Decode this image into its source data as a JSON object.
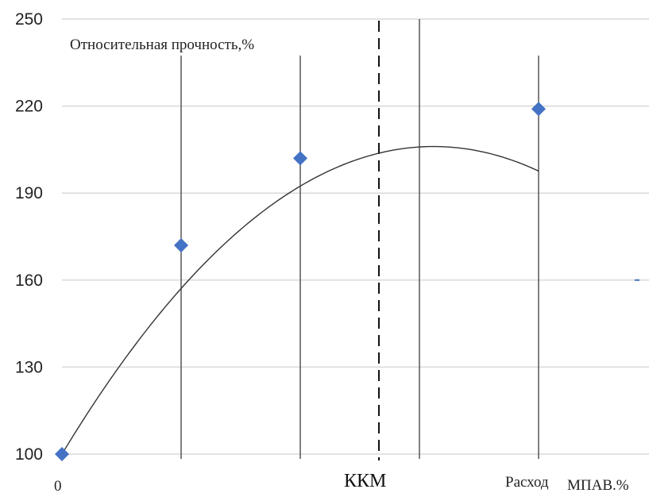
{
  "chart_data": {
    "type": "scatter",
    "ylabel": "Относительная прочность,%",
    "xlabel_part1": "Расход",
    "xlabel_part2": "МПАВ.%",
    "ylim": [
      100,
      250
    ],
    "yticks": [
      "100",
      "130",
      "160",
      "190",
      "220",
      "250"
    ],
    "x_first_tick": "0",
    "points": [
      {
        "x": 0,
        "y": 100
      },
      {
        "x": 1,
        "y": 172
      },
      {
        "x": 2,
        "y": 202
      },
      {
        "x": 4,
        "y": 219
      }
    ],
    "trendline": {
      "type": "polynomial",
      "order": 2,
      "coefficients": [
        100,
        68,
        -10.9
      ]
    },
    "kkm_x": 2.66,
    "kkm_label": "ККМ",
    "grid": "vertical-and-horizontal",
    "colors": {
      "marker": "#4472C4",
      "curve": "#333333",
      "grid": "#4a4a4a",
      "hgrid": "#d9d9d9"
    }
  }
}
